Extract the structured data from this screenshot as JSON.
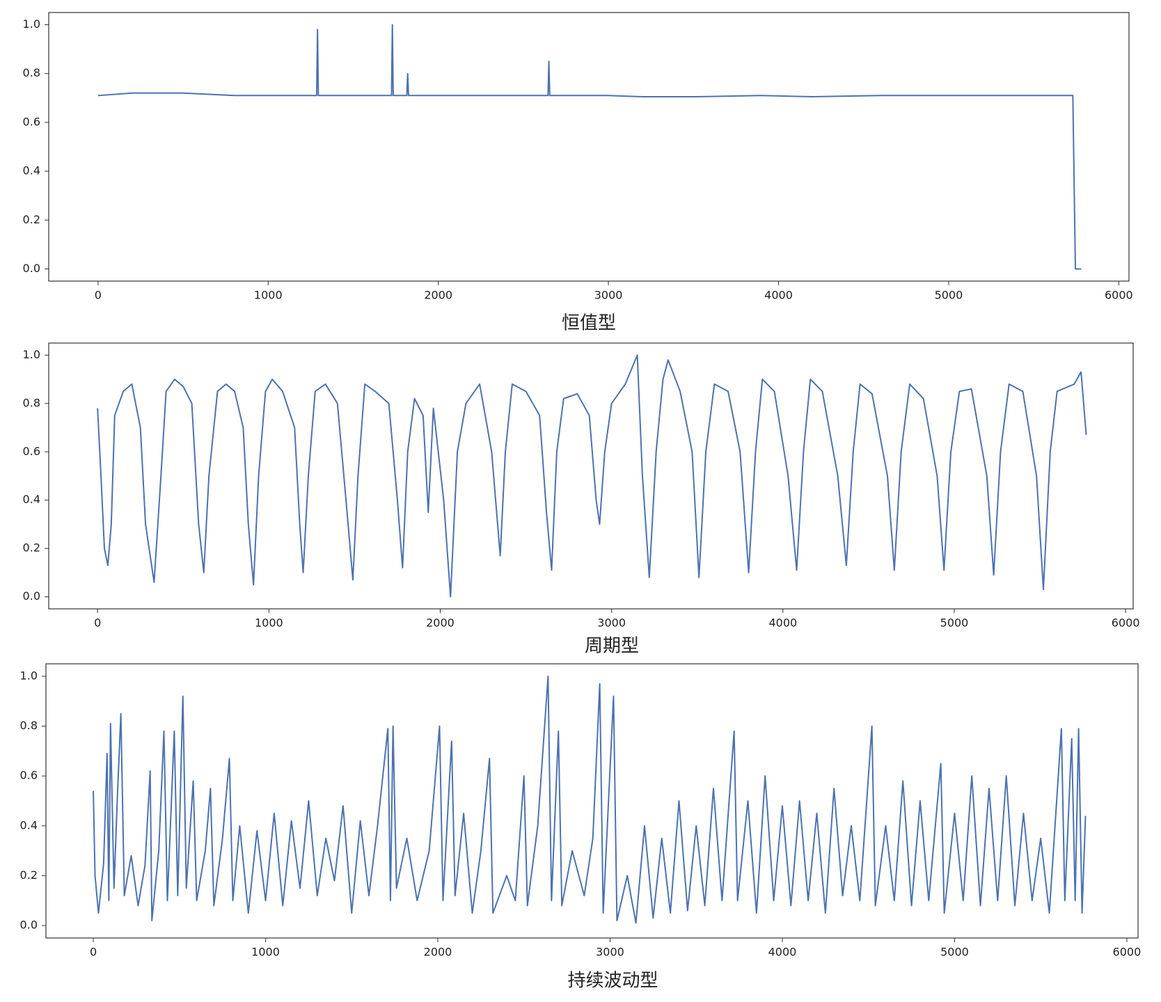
{
  "chart_data": [
    {
      "type": "line",
      "xlabel": "恒值型",
      "color": "#4c72b0",
      "xlim": [
        -290,
        6060
      ],
      "ylim": [
        -0.05,
        1.05
      ],
      "xticks": [
        0,
        1000,
        2000,
        3000,
        4000,
        5000,
        6000
      ],
      "yticks": [
        {
          "value": 0,
          "label": "0.0"
        },
        {
          "value": 0.2,
          "label": "0.2"
        },
        {
          "value": 0.4,
          "label": "0.4"
        },
        {
          "value": 0.6,
          "label": "0.6"
        },
        {
          "value": 0.8,
          "label": "0.8"
        },
        {
          "value": 1,
          "label": "1.0"
        }
      ],
      "x": [
        0,
        200,
        500,
        800,
        1100,
        1285,
        1290,
        1295,
        1500,
        1725,
        1730,
        1735,
        1815,
        1820,
        1825,
        2100,
        2400,
        2645,
        2650,
        2655,
        3000,
        3200,
        3500,
        3900,
        4200,
        4600,
        5000,
        5400,
        5730,
        5745,
        5780
      ],
      "values": [
        0.71,
        0.72,
        0.72,
        0.71,
        0.71,
        0.71,
        0.98,
        0.71,
        0.71,
        0.71,
        1.0,
        0.71,
        0.71,
        0.8,
        0.71,
        0.71,
        0.71,
        0.71,
        0.85,
        0.71,
        0.71,
        0.705,
        0.705,
        0.71,
        0.705,
        0.71,
        0.71,
        0.71,
        0.71,
        0.0,
        0.0
      ]
    },
    {
      "type": "line",
      "xlabel": "周期型",
      "color": "#4c72b0",
      "xlim": [
        -285,
        6044
      ],
      "ylim": [
        -0.05,
        1.05
      ],
      "xticks": [
        0,
        1000,
        2000,
        3000,
        4000,
        5000,
        6000
      ],
      "yticks": [
        {
          "value": 0,
          "label": "0.0"
        },
        {
          "value": 0.2,
          "label": "0.2"
        },
        {
          "value": 0.4,
          "label": "0.4"
        },
        {
          "value": 0.6,
          "label": "0.6"
        },
        {
          "value": 0.8,
          "label": "0.8"
        },
        {
          "value": 1,
          "label": "1.0"
        }
      ],
      "x": [
        0,
        20,
        40,
        60,
        80,
        100,
        150,
        200,
        250,
        280,
        330,
        370,
        400,
        450,
        500,
        550,
        590,
        620,
        650,
        700,
        750,
        800,
        850,
        880,
        910,
        940,
        980,
        1020,
        1080,
        1150,
        1180,
        1200,
        1230,
        1270,
        1330,
        1400,
        1450,
        1490,
        1520,
        1560,
        1620,
        1700,
        1750,
        1780,
        1810,
        1850,
        1900,
        1930,
        1960,
        2020,
        2060,
        2100,
        2150,
        2230,
        2300,
        2350,
        2380,
        2420,
        2500,
        2580,
        2620,
        2650,
        2680,
        2720,
        2800,
        2870,
        2910,
        2930,
        2960,
        3000,
        3080,
        3150,
        3180,
        3220,
        3260,
        3300,
        3330,
        3400,
        3470,
        3510,
        3550,
        3600,
        3680,
        3750,
        3800,
        3840,
        3880,
        3950,
        4030,
        4080,
        4120,
        4160,
        4230,
        4320,
        4370,
        4410,
        4450,
        4520,
        4610,
        4650,
        4690,
        4740,
        4820,
        4900,
        4940,
        4980,
        5030,
        5100,
        5190,
        5230,
        5270,
        5320,
        5400,
        5480,
        5520,
        5560,
        5600,
        5700,
        5740,
        5770
      ],
      "values": [
        0.78,
        0.5,
        0.2,
        0.13,
        0.3,
        0.75,
        0.85,
        0.88,
        0.7,
        0.3,
        0.06,
        0.5,
        0.85,
        0.9,
        0.87,
        0.8,
        0.3,
        0.1,
        0.5,
        0.85,
        0.88,
        0.85,
        0.7,
        0.3,
        0.05,
        0.5,
        0.85,
        0.9,
        0.85,
        0.7,
        0.3,
        0.1,
        0.5,
        0.85,
        0.88,
        0.8,
        0.4,
        0.07,
        0.5,
        0.88,
        0.85,
        0.8,
        0.4,
        0.12,
        0.6,
        0.82,
        0.75,
        0.35,
        0.78,
        0.4,
        0.0,
        0.6,
        0.8,
        0.88,
        0.6,
        0.17,
        0.6,
        0.88,
        0.85,
        0.75,
        0.35,
        0.11,
        0.6,
        0.82,
        0.84,
        0.75,
        0.4,
        0.3,
        0.6,
        0.8,
        0.88,
        1.0,
        0.5,
        0.08,
        0.6,
        0.9,
        0.98,
        0.85,
        0.6,
        0.08,
        0.6,
        0.88,
        0.85,
        0.6,
        0.1,
        0.6,
        0.9,
        0.85,
        0.5,
        0.11,
        0.6,
        0.9,
        0.85,
        0.5,
        0.13,
        0.6,
        0.88,
        0.84,
        0.5,
        0.11,
        0.6,
        0.88,
        0.82,
        0.5,
        0.11,
        0.6,
        0.85,
        0.86,
        0.5,
        0.09,
        0.6,
        0.88,
        0.85,
        0.5,
        0.03,
        0.6,
        0.85,
        0.88,
        0.93,
        0.67
      ]
    },
    {
      "type": "line",
      "xlabel": "持续波动型",
      "color": "#4c72b0",
      "xlim": [
        -275,
        6065
      ],
      "ylim": [
        -0.05,
        1.05
      ],
      "xticks": [
        0,
        1000,
        2000,
        3000,
        4000,
        5000,
        6000
      ],
      "yticks": [
        {
          "value": 0,
          "label": "0.0"
        },
        {
          "value": 0.2,
          "label": "0.2"
        },
        {
          "value": 0.4,
          "label": "0.4"
        },
        {
          "value": 0.6,
          "label": "0.6"
        },
        {
          "value": 0.8,
          "label": "0.8"
        },
        {
          "value": 1,
          "label": "1.0"
        }
      ],
      "x": [
        0,
        10,
        30,
        60,
        80,
        90,
        100,
        120,
        140,
        160,
        180,
        220,
        260,
        300,
        330,
        340,
        380,
        410,
        430,
        470,
        490,
        520,
        540,
        580,
        600,
        650,
        680,
        700,
        750,
        790,
        810,
        850,
        900,
        950,
        1000,
        1050,
        1100,
        1150,
        1200,
        1250,
        1300,
        1350,
        1400,
        1450,
        1500,
        1550,
        1600,
        1650,
        1710,
        1725,
        1740,
        1760,
        1820,
        1880,
        1950,
        2010,
        2030,
        2080,
        2100,
        2150,
        2200,
        2250,
        2300,
        2320,
        2400,
        2450,
        2500,
        2520,
        2580,
        2640,
        2660,
        2700,
        2720,
        2780,
        2850,
        2900,
        2940,
        2960,
        3020,
        3040,
        3100,
        3150,
        3200,
        3250,
        3300,
        3350,
        3400,
        3450,
        3500,
        3550,
        3600,
        3650,
        3720,
        3740,
        3800,
        3850,
        3900,
        3950,
        4000,
        4050,
        4100,
        4150,
        4200,
        4250,
        4300,
        4350,
        4400,
        4450,
        4520,
        4540,
        4600,
        4650,
        4700,
        4750,
        4800,
        4850,
        4920,
        4940,
        5000,
        5050,
        5100,
        5150,
        5200,
        5250,
        5300,
        5350,
        5400,
        5450,
        5500,
        5550,
        5620,
        5640,
        5680,
        5700,
        5720,
        5740,
        5760
      ],
      "values": [
        0.54,
        0.2,
        0.05,
        0.25,
        0.69,
        0.1,
        0.81,
        0.15,
        0.52,
        0.85,
        0.12,
        0.28,
        0.08,
        0.24,
        0.62,
        0.02,
        0.3,
        0.78,
        0.1,
        0.78,
        0.12,
        0.92,
        0.15,
        0.58,
        0.1,
        0.3,
        0.55,
        0.08,
        0.35,
        0.67,
        0.1,
        0.4,
        0.05,
        0.38,
        0.1,
        0.45,
        0.08,
        0.42,
        0.15,
        0.5,
        0.12,
        0.35,
        0.18,
        0.48,
        0.05,
        0.42,
        0.12,
        0.4,
        0.79,
        0.1,
        0.8,
        0.15,
        0.35,
        0.1,
        0.3,
        0.8,
        0.1,
        0.74,
        0.12,
        0.45,
        0.05,
        0.3,
        0.67,
        0.05,
        0.2,
        0.1,
        0.6,
        0.08,
        0.4,
        1.0,
        0.1,
        0.78,
        0.08,
        0.3,
        0.12,
        0.35,
        0.97,
        0.05,
        0.92,
        0.02,
        0.2,
        0.01,
        0.4,
        0.03,
        0.35,
        0.05,
        0.5,
        0.06,
        0.4,
        0.08,
        0.55,
        0.1,
        0.78,
        0.1,
        0.5,
        0.05,
        0.6,
        0.1,
        0.48,
        0.08,
        0.5,
        0.1,
        0.45,
        0.05,
        0.55,
        0.12,
        0.4,
        0.1,
        0.8,
        0.08,
        0.4,
        0.1,
        0.58,
        0.08,
        0.5,
        0.1,
        0.65,
        0.05,
        0.45,
        0.1,
        0.6,
        0.08,
        0.55,
        0.1,
        0.6,
        0.08,
        0.45,
        0.1,
        0.35,
        0.05,
        0.79,
        0.1,
        0.75,
        0.1,
        0.79,
        0.05,
        0.44
      ]
    }
  ]
}
